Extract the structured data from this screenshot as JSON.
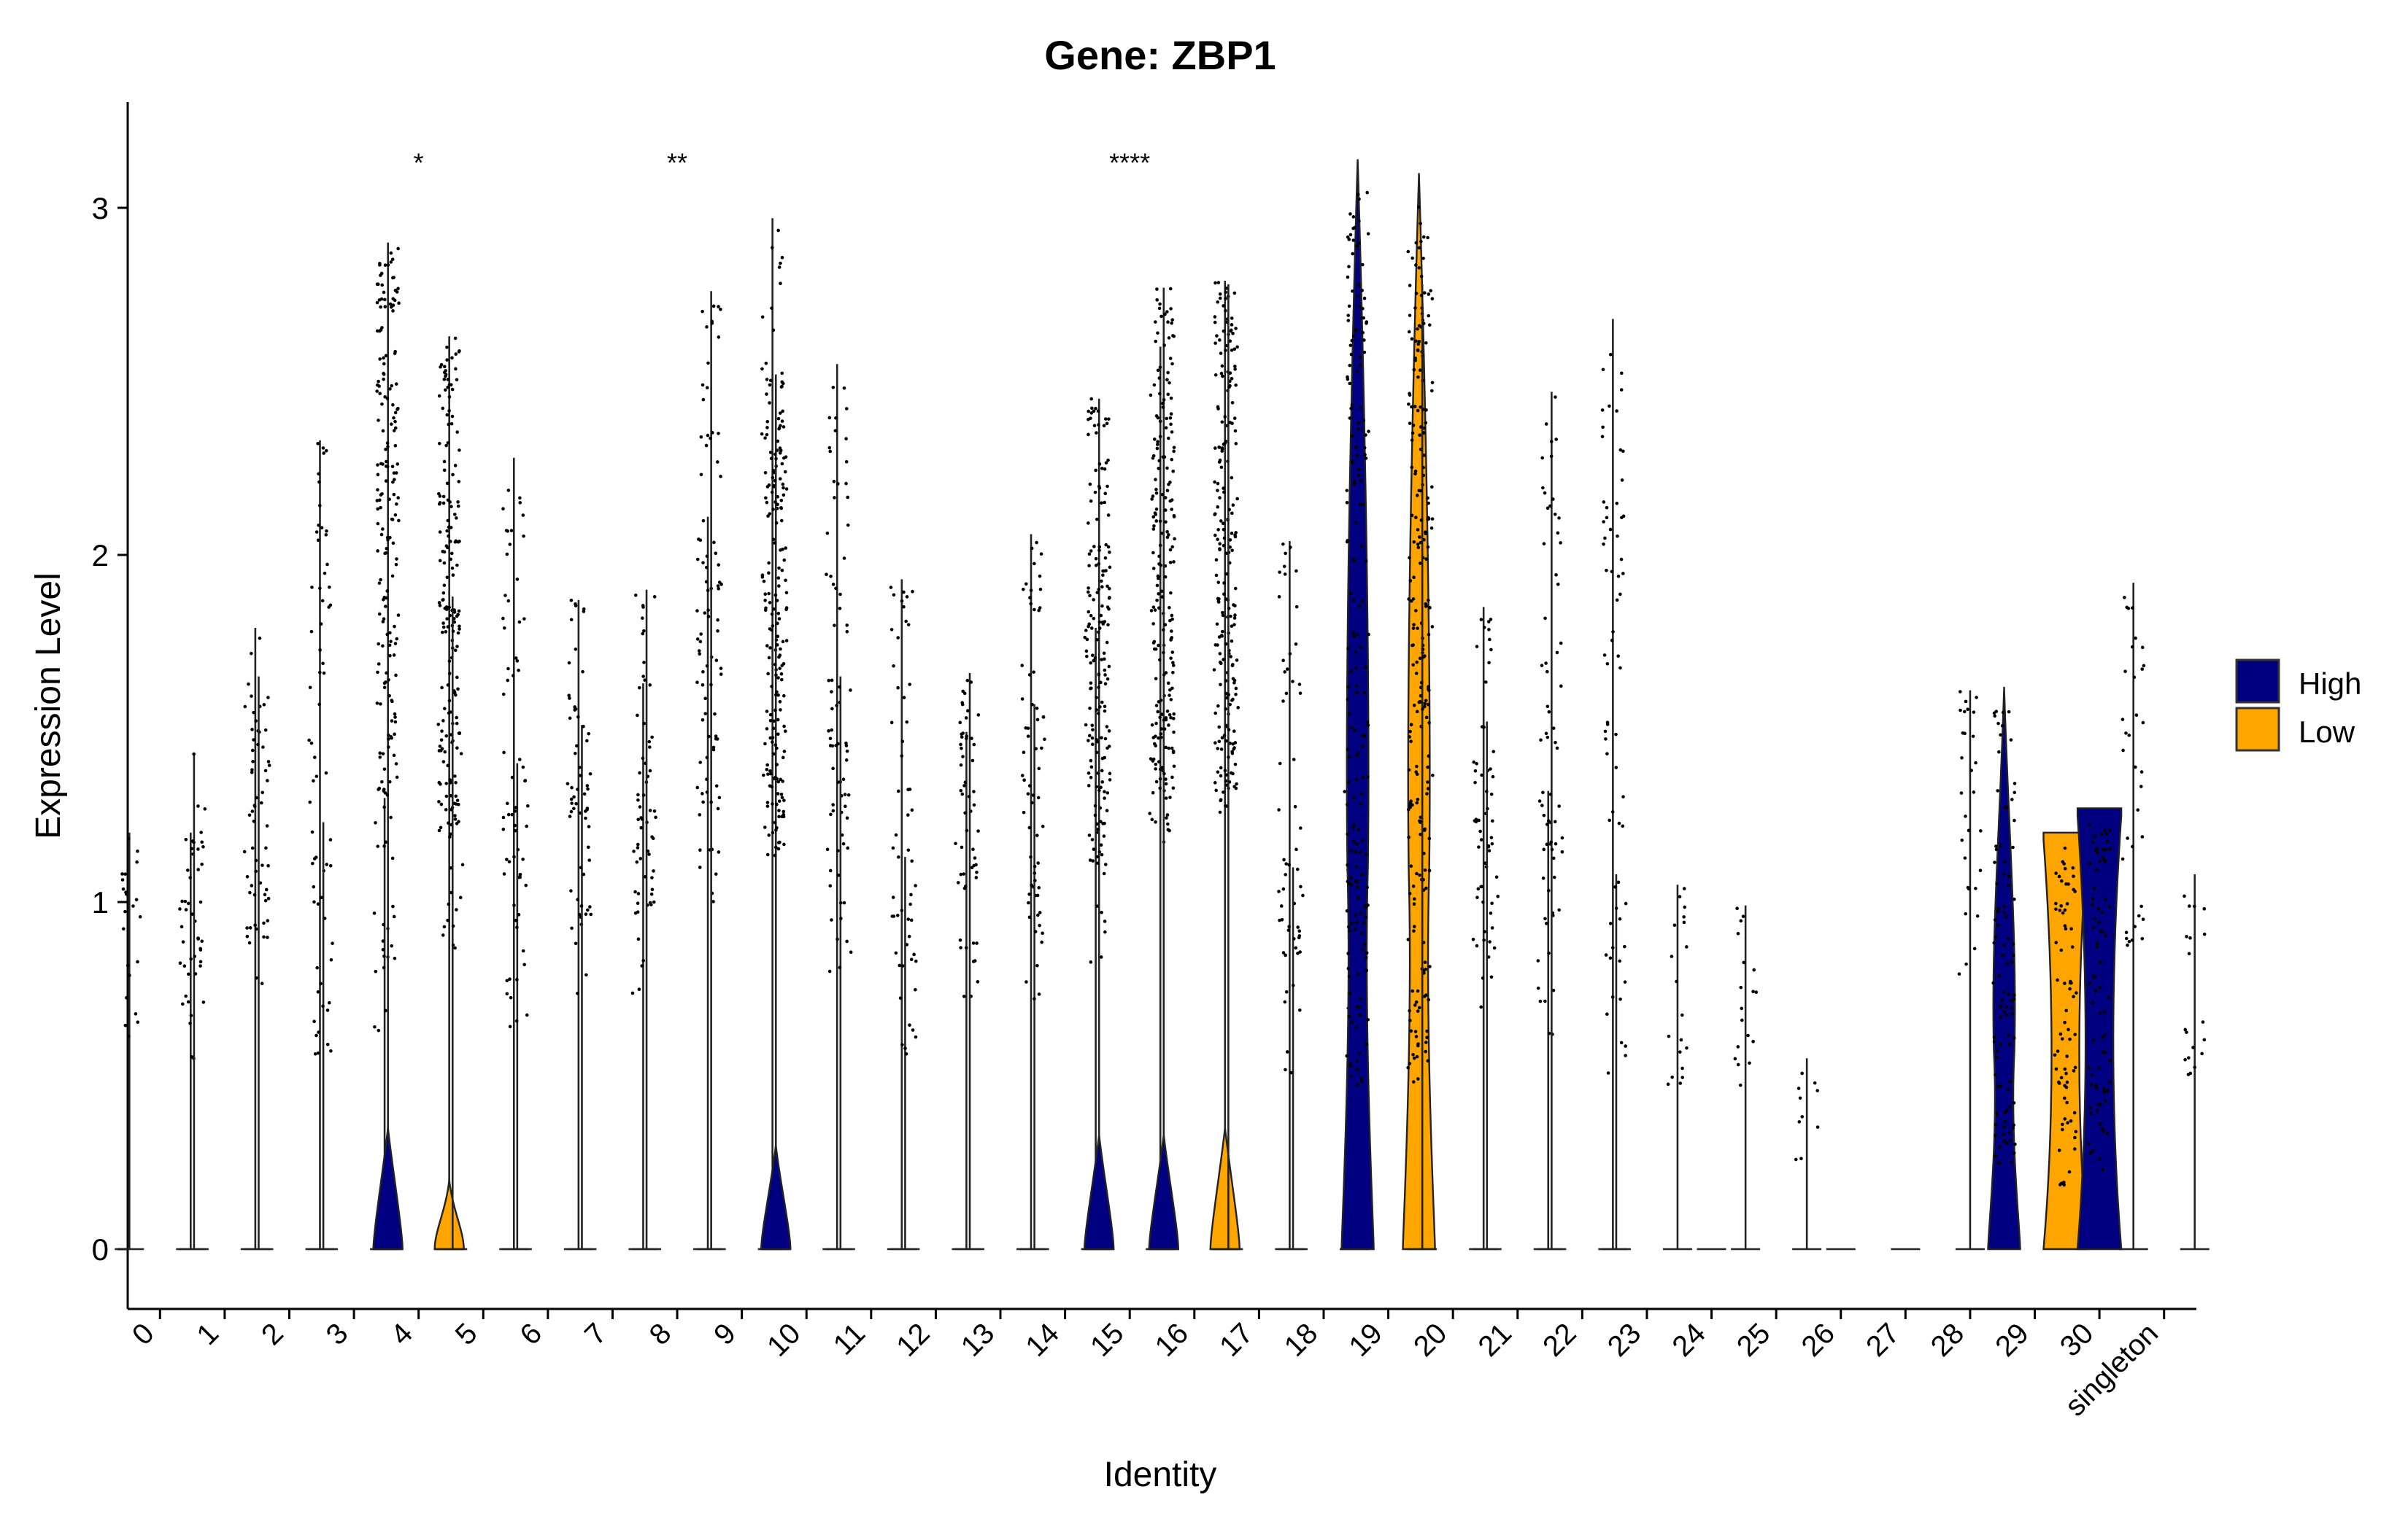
{
  "chart_data": {
    "type": "violin",
    "title": "Gene: ZBP1",
    "xlabel": "Identity",
    "ylabel": "Expression Level",
    "ylim": [
      -0.15,
      3.3
    ],
    "yticks": [
      "0",
      "1",
      "2",
      "3"
    ],
    "categories": [
      "0",
      "1",
      "2",
      "3",
      "4",
      "5",
      "6",
      "7",
      "8",
      "9",
      "10",
      "11",
      "12",
      "13",
      "14",
      "15",
      "16",
      "17",
      "18",
      "19",
      "20",
      "21",
      "22",
      "23",
      "24",
      "25",
      "26",
      "27",
      "28",
      "29",
      "30",
      "singleton"
    ],
    "legend": {
      "position": "right",
      "entries": [
        {
          "name": "High",
          "color": "#000080"
        },
        {
          "name": "Low",
          "color": "#FFA500"
        }
      ]
    },
    "series": [
      {
        "name": "High",
        "color": "#000080",
        "max": [
          1.2,
          1.43,
          1.65,
          1.23,
          2.9,
          1.88,
          1.4,
          1.51,
          1.9,
          2.76,
          2.52,
          1.65,
          1.13,
          1.66,
          1.57,
          2.45,
          2.77,
          2.78,
          1.1,
          3.14,
          2.78,
          1.52,
          2.47,
          1.08,
          0,
          0.99,
          0,
          0,
          1.61,
          1.62,
          1.27,
          1.92
        ],
        "body_height": [
          0,
          0,
          0,
          0,
          0.35,
          0,
          0,
          0,
          0,
          0,
          0.3,
          0,
          0,
          0,
          0,
          0.33,
          0.33,
          0,
          0,
          3.0,
          0,
          0,
          0,
          0,
          0,
          0,
          0,
          0,
          0,
          1.62,
          1.27,
          0
        ]
      },
      {
        "name": "Low",
        "color": "#FFA500",
        "max": [
          1.2,
          1.79,
          2.33,
          1.3,
          2.63,
          2.28,
          1.87,
          1.63,
          2.11,
          2.97,
          2.55,
          1.93,
          1.49,
          2.06,
          1.79,
          2.6,
          2.79,
          2.04,
          1.37,
          3.1,
          1.85,
          1.32,
          2.68,
          1.05,
          0,
          0.55,
          0,
          0,
          0,
          1.2,
          0,
          1.08
        ],
        "body_height": [
          0,
          0,
          0,
          0,
          0.2,
          0,
          0,
          0,
          0,
          0,
          0,
          0,
          0,
          0,
          0,
          0,
          0.35,
          0,
          0,
          3.0,
          0,
          0,
          0,
          0,
          0,
          0,
          0,
          0,
          0,
          1.2,
          0,
          0
        ]
      }
    ],
    "annotations": [
      {
        "group": "4",
        "text": "*"
      },
      {
        "group": "8",
        "text": "**"
      },
      {
        "group": "15",
        "text": "****"
      }
    ]
  }
}
